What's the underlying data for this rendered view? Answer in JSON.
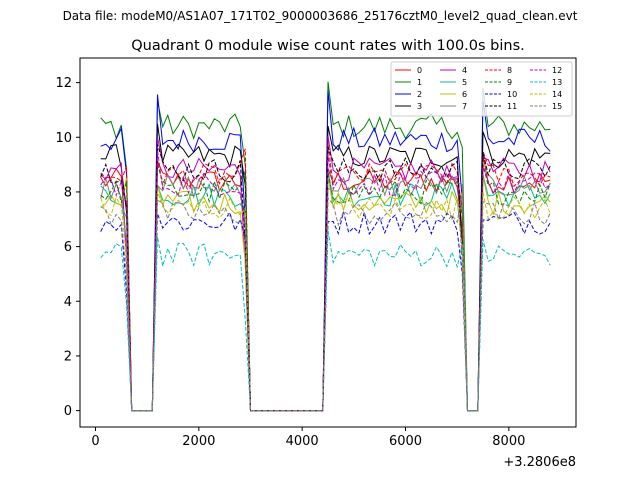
{
  "chart_data": {
    "type": "line",
    "supertitle": "Data file: modeM0/AS1A07_171T02_9000003686_25176cztM0_level2_quad_clean.evt",
    "title": "Quadrant 0 module wise count rates with 100.0s bins.",
    "xlabel": "",
    "ylabel": "",
    "x_offset_label": "+3.2806e8",
    "xlim": [
      -300,
      9300
    ],
    "ylim": [
      -0.6,
      12.9
    ],
    "xticks": [
      0,
      2000,
      4000,
      6000,
      8000
    ],
    "yticks": [
      0,
      2,
      4,
      6,
      8,
      10,
      12
    ],
    "legend_position": "top-right",
    "x": [
      100,
      200,
      300,
      400,
      500,
      600,
      700,
      800,
      900,
      1000,
      1100,
      1200,
      1300,
      1400,
      1500,
      1600,
      1700,
      1800,
      1900,
      2000,
      2100,
      2200,
      2300,
      2400,
      2500,
      2600,
      2700,
      2800,
      2900,
      3000,
      3100,
      3200,
      3300,
      3400,
      3500,
      3600,
      3700,
      3800,
      3900,
      4000,
      4100,
      4200,
      4300,
      4400,
      4500,
      4600,
      4700,
      4800,
      4900,
      5000,
      5100,
      5200,
      5300,
      5400,
      5500,
      5600,
      5700,
      5800,
      5900,
      6000,
      6100,
      6200,
      6300,
      6400,
      6500,
      6600,
      6700,
      6800,
      6900,
      7000,
      7100,
      7200,
      7300,
      7400,
      7500,
      7600,
      7700,
      7800,
      7900,
      8000,
      8100,
      8200,
      8300,
      8400,
      8500,
      8600,
      8700,
      8800
    ],
    "series": [
      {
        "name": "0",
        "color": "#ff0000",
        "dash": "solid",
        "level": 8.4,
        "peak": 9.4
      },
      {
        "name": "1",
        "color": "#008000",
        "dash": "solid",
        "level": 10.4,
        "peak": 12.2
      },
      {
        "name": "2",
        "color": "#0000ff",
        "dash": "solid",
        "level": 9.9,
        "peak": 11.8
      },
      {
        "name": "3",
        "color": "#000000",
        "dash": "solid",
        "level": 9.3,
        "peak": 10.6
      },
      {
        "name": "4",
        "color": "#bf00bf",
        "dash": "solid",
        "level": 8.8,
        "peak": 10.2
      },
      {
        "name": "5",
        "color": "#00bf8f",
        "dash": "solid",
        "level": 7.9,
        "peak": 9.1
      },
      {
        "name": "6",
        "color": "#bfbf00",
        "dash": "solid",
        "level": 7.6,
        "peak": 8.8
      },
      {
        "name": "7",
        "color": "#808080",
        "dash": "solid",
        "level": 8.2,
        "peak": 9.0
      },
      {
        "name": "8",
        "color": "#ff0000",
        "dash": "dashed",
        "level": 8.6,
        "peak": 9.8
      },
      {
        "name": "9",
        "color": "#008000",
        "dash": "dashed",
        "level": 8.0,
        "peak": 9.3
      },
      {
        "name": "10",
        "color": "#0000ff",
        "dash": "dashed",
        "level": 6.9,
        "peak": 7.6
      },
      {
        "name": "11",
        "color": "#000000",
        "dash": "dashed",
        "level": 8.8,
        "peak": 10.0
      },
      {
        "name": "12",
        "color": "#bf00bf",
        "dash": "dashed",
        "level": 8.3,
        "peak": 9.6
      },
      {
        "name": "13",
        "color": "#00bfbf",
        "dash": "dashed",
        "level": 5.7,
        "peak": 6.6
      },
      {
        "name": "14",
        "color": "#bfbf00",
        "dash": "dashed",
        "level": 7.4,
        "peak": 8.4
      },
      {
        "name": "15",
        "color": "#808080",
        "dash": "dashed",
        "level": 7.2,
        "peak": 8.0
      }
    ],
    "gaps": [
      [
        700,
        1100
      ],
      [
        2950,
        4450
      ],
      [
        7200,
        7400
      ]
    ],
    "note": "Series values are per-bin count rates; each series fluctuates around its level outside the gap intervals, where rates drop to 0."
  }
}
